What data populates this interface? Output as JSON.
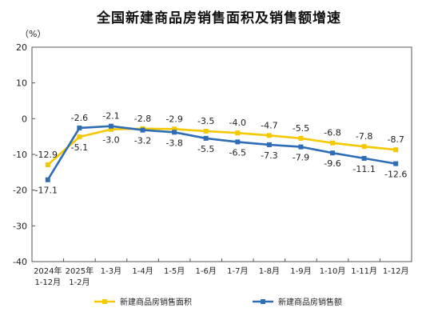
{
  "colors": {
    "area": "#F5C800",
    "sales": "#2F6DB5",
    "frame": "#555555",
    "grid": "#d9d9d9"
  },
  "chart_data": {
    "type": "line",
    "title": "全国新建商品房销售面积及销售额增速",
    "ylabel": "（%）",
    "ylim": [
      -40,
      20
    ],
    "yticks": [
      20,
      10,
      0,
      -10,
      -20,
      -30,
      -40
    ],
    "categories": [
      [
        "2024年",
        "1-12月"
      ],
      [
        "2025年",
        "1-2月"
      ],
      [
        "1-3月"
      ],
      [
        "1-4月"
      ],
      [
        "1-5月"
      ],
      [
        "1-6月"
      ],
      [
        "1-7月"
      ],
      [
        "1-8月"
      ],
      [
        "1-9月"
      ],
      [
        "1-10月"
      ],
      [
        "1-11月"
      ],
      [
        "1-12月"
      ]
    ],
    "series": [
      {
        "name": "新建商品房销售面积",
        "color_key": "area",
        "values": [
          -12.9,
          -5.1,
          -3.0,
          -2.8,
          -2.9,
          -3.5,
          -4.0,
          -4.7,
          -5.5,
          -6.8,
          -7.8,
          -8.7
        ]
      },
      {
        "name": "新建商品房销售额",
        "color_key": "sales",
        "values": [
          -17.1,
          -2.6,
          -2.1,
          -3.2,
          -3.8,
          -5.5,
          -6.5,
          -7.3,
          -7.9,
          -9.6,
          -11.1,
          -12.6
        ]
      }
    ],
    "grid": false,
    "legend": "bottom"
  }
}
